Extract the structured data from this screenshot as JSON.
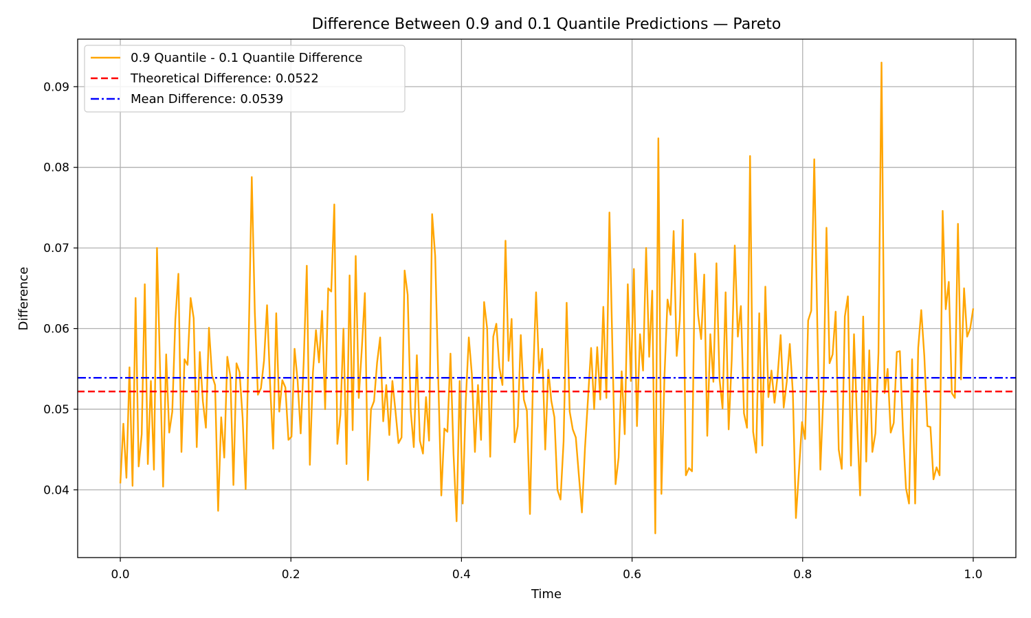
{
  "chart_data": {
    "type": "line",
    "title": "Difference Between 0.9 and 0.1 Quantile Predictions — Pareto",
    "xlabel": "Time",
    "ylabel": "Difference",
    "xlim": [
      -0.05,
      1.05
    ],
    "ylim": [
      0.0316,
      0.0959
    ],
    "xticks": [
      0.0,
      0.2,
      0.4,
      0.6,
      0.8,
      1.0
    ],
    "xtick_labels": [
      "0.0",
      "0.2",
      "0.4",
      "0.6",
      "0.8",
      "1.0"
    ],
    "yticks": [
      0.04,
      0.05,
      0.06,
      0.07,
      0.08,
      0.09
    ],
    "ytick_labels": [
      "0.04",
      "0.05",
      "0.06",
      "0.07",
      "0.08",
      "0.09"
    ],
    "grid": true,
    "legend_position": "top-left",
    "series": [
      {
        "name": "0.9 Quantile - 0.1 Quantile Difference",
        "color": "#ffa500",
        "style": "solid",
        "x_start": 0.0,
        "x_end": 1.0,
        "values": [
          0.0408,
          0.0482,
          0.0415,
          0.0552,
          0.0405,
          0.0638,
          0.0429,
          0.0469,
          0.0655,
          0.0432,
          0.0535,
          0.0425,
          0.07,
          0.055,
          0.0404,
          0.0568,
          0.0471,
          0.0497,
          0.0611,
          0.0668,
          0.0447,
          0.0562,
          0.0555,
          0.0638,
          0.0613,
          0.0453,
          0.0571,
          0.051,
          0.0477,
          0.0601,
          0.0542,
          0.053,
          0.0374,
          0.049,
          0.044,
          0.0565,
          0.0541,
          0.0406,
          0.0557,
          0.0546,
          0.049,
          0.0401,
          0.0587,
          0.0788,
          0.062,
          0.0518,
          0.0526,
          0.056,
          0.0629,
          0.0531,
          0.0451,
          0.0619,
          0.0497,
          0.0536,
          0.0527,
          0.0462,
          0.0466,
          0.0575,
          0.0535,
          0.047,
          0.056,
          0.0678,
          0.0431,
          0.0545,
          0.0598,
          0.0558,
          0.0622,
          0.05,
          0.065,
          0.0646,
          0.0754,
          0.0457,
          0.0493,
          0.06,
          0.0432,
          0.0666,
          0.0474,
          0.069,
          0.0514,
          0.0575,
          0.0644,
          0.0412,
          0.05,
          0.051,
          0.0558,
          0.0589,
          0.0485,
          0.053,
          0.0468,
          0.0535,
          0.0498,
          0.0458,
          0.0465,
          0.0672,
          0.0642,
          0.0498,
          0.0453,
          0.0567,
          0.0461,
          0.0445,
          0.0515,
          0.0461,
          0.0742,
          0.069,
          0.0538,
          0.0393,
          0.0476,
          0.0472,
          0.0569,
          0.0444,
          0.0361,
          0.0535,
          0.0383,
          0.051,
          0.0589,
          0.0543,
          0.0447,
          0.053,
          0.0462,
          0.0633,
          0.06,
          0.0441,
          0.059,
          0.0606,
          0.0552,
          0.053,
          0.0709,
          0.056,
          0.0612,
          0.0459,
          0.0479,
          0.0592,
          0.0512,
          0.0498,
          0.037,
          0.0537,
          0.0645,
          0.0545,
          0.0575,
          0.045,
          0.0549,
          0.051,
          0.049,
          0.04,
          0.0388,
          0.046,
          0.0632,
          0.0497,
          0.0475,
          0.0465,
          0.0418,
          0.0372,
          0.0452,
          0.0514,
          0.0576,
          0.05,
          0.0577,
          0.0512,
          0.0627,
          0.0514,
          0.0744,
          0.057,
          0.0407,
          0.044,
          0.0547,
          0.0469,
          0.0655,
          0.0535,
          0.0674,
          0.0479,
          0.0593,
          0.0548,
          0.07,
          0.0565,
          0.0647,
          0.0346,
          0.0836,
          0.0395,
          0.0541,
          0.0636,
          0.0617,
          0.0721,
          0.0566,
          0.061,
          0.0735,
          0.0418,
          0.0427,
          0.0423,
          0.0693,
          0.0617,
          0.0587,
          0.0667,
          0.0467,
          0.0593,
          0.0534,
          0.0681,
          0.0538,
          0.0501,
          0.0645,
          0.0475,
          0.0561,
          0.0703,
          0.059,
          0.0628,
          0.0495,
          0.0477,
          0.0814,
          0.0472,
          0.0446,
          0.0619,
          0.0455,
          0.0652,
          0.0515,
          0.0548,
          0.0508,
          0.0541,
          0.0592,
          0.0502,
          0.0534,
          0.0581,
          0.052,
          0.0365,
          0.0424,
          0.0484,
          0.0463,
          0.061,
          0.0622,
          0.081,
          0.0604,
          0.0425,
          0.052,
          0.0725,
          0.0557,
          0.0568,
          0.0621,
          0.045,
          0.0426,
          0.0615,
          0.064,
          0.043,
          0.0593,
          0.0484,
          0.0393,
          0.0615,
          0.0435,
          0.0573,
          0.0447,
          0.047,
          0.057,
          0.093,
          0.052,
          0.055,
          0.0471,
          0.0483,
          0.0571,
          0.0572,
          0.0474,
          0.0402,
          0.0383,
          0.0562,
          0.0383,
          0.0576,
          0.0623,
          0.0566,
          0.0479,
          0.0478,
          0.0413,
          0.0428,
          0.0418,
          0.0746,
          0.0624,
          0.0658,
          0.052,
          0.0514,
          0.073,
          0.0537,
          0.065,
          0.059,
          0.06,
          0.0625
        ]
      },
      {
        "name": "Theoretical Difference: 0.0522",
        "color": "#ff0000",
        "style": "dashed",
        "value": 0.0522
      },
      {
        "name": "Mean Difference: 0.0539",
        "color": "#0000ff",
        "style": "dashdot",
        "value": 0.0539
      }
    ]
  }
}
